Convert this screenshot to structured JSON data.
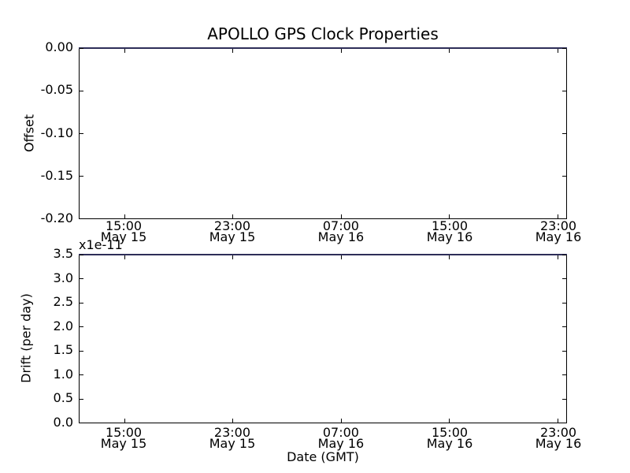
{
  "figure": {
    "background": "#ffffff",
    "spine_color": "#000000",
    "line_on_spine_color": "#2e2e58",
    "series_base_color": "#0000ff"
  },
  "chart_data": [
    {
      "type": "line",
      "title": "APOLLO GPS Clock Properties",
      "ylabel": "Offset",
      "xlabel": "",
      "grid": false,
      "legend": null,
      "ylim": [
        -0.2,
        0.0
      ],
      "y_tick_labels_top_to_bottom": [
        "0.00",
        "-0.05",
        "-0.10",
        "-0.15",
        "-0.20"
      ],
      "x_ticks": [
        {
          "time": "15:00",
          "date": "May 15"
        },
        {
          "time": "23:00",
          "date": "May 15"
        },
        {
          "time": "07:00",
          "date": "May 16"
        },
        {
          "time": "15:00",
          "date": "May 16"
        },
        {
          "time": "23:00",
          "date": "May 16"
        }
      ],
      "series": [
        {
          "name": "Offset",
          "color": "#0000ff",
          "y_constant": 0.0,
          "description": "flat line at y = 0.00 spanning the full x-range, overlapping the top axis spine"
        }
      ]
    },
    {
      "type": "line",
      "title": "",
      "ylabel": "Drift (per day)",
      "y_offset_text": "x1e-11",
      "xlabel": "Date (GMT)",
      "grid": false,
      "legend": null,
      "ylim": [
        0.0,
        3.5e-11
      ],
      "y_tick_labels_top_to_bottom": [
        "3.5",
        "3.0",
        "2.5",
        "2.0",
        "1.5",
        "1.0",
        "0.5",
        "0.0"
      ],
      "x_ticks": [
        {
          "time": "15:00",
          "date": "May 15"
        },
        {
          "time": "23:00",
          "date": "May 15"
        },
        {
          "time": "07:00",
          "date": "May 16"
        },
        {
          "time": "15:00",
          "date": "May 16"
        },
        {
          "time": "23:00",
          "date": "May 16"
        }
      ],
      "series": [
        {
          "name": "Drift",
          "color": "#0000ff",
          "y_constant": 3.5e-11,
          "description": "flat line at the top of the axes (y = 3.5e-11), overlapping the top axis spine"
        }
      ]
    }
  ]
}
